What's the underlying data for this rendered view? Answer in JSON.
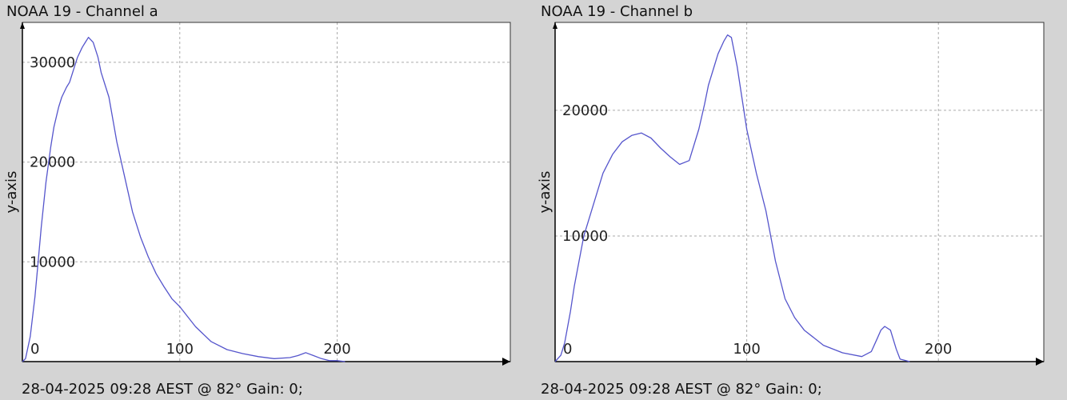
{
  "chart_data": [
    {
      "type": "line",
      "title": "NOAA 19 - Channel a",
      "ylabel": "y-axis",
      "footer": "28-04-2025 09:28 AEST @ 82° Gain: 0;",
      "xlim": [
        0,
        310
      ],
      "ylim": [
        0,
        34000
      ],
      "x_ticks": [
        0,
        100,
        200
      ],
      "y_ticks": [
        10000,
        20000,
        30000
      ],
      "grid": true,
      "series": [
        {
          "color": "#5555cc",
          "x": [
            0,
            2,
            5,
            8,
            10,
            12,
            15,
            18,
            20,
            23,
            25,
            28,
            30,
            33,
            35,
            38,
            40,
            42,
            45,
            48,
            50,
            55,
            60,
            65,
            70,
            75,
            80,
            85,
            90,
            95,
            100,
            110,
            120,
            130,
            140,
            150,
            160,
            170,
            175,
            180,
            185,
            190,
            195,
            200,
            205
          ],
          "y": [
            0,
            300,
            2500,
            6500,
            10000,
            13500,
            18000,
            21500,
            23500,
            25500,
            26500,
            27500,
            28000,
            29500,
            30500,
            31500,
            32000,
            32500,
            32000,
            30500,
            29000,
            26500,
            22000,
            18500,
            15000,
            12500,
            10500,
            8800,
            7500,
            6300,
            5500,
            3500,
            2000,
            1200,
            800,
            500,
            300,
            400,
            600,
            900,
            600,
            300,
            100,
            100,
            0
          ]
        }
      ]
    },
    {
      "type": "line",
      "title": "NOAA 19 - Channel b",
      "ylabel": "y-axis",
      "footer": "28-04-2025 09:28 AEST @ 82° Gain: 0;",
      "xlim": [
        0,
        255
      ],
      "ylim": [
        0,
        27000
      ],
      "x_ticks": [
        0,
        100,
        200
      ],
      "y_ticks": [
        10000,
        20000
      ],
      "grid": true,
      "series": [
        {
          "color": "#5555cc",
          "x": [
            0,
            3,
            5,
            8,
            10,
            15,
            18,
            20,
            25,
            30,
            35,
            40,
            45,
            50,
            55,
            60,
            65,
            70,
            75,
            78,
            80,
            83,
            85,
            88,
            90,
            92,
            95,
            100,
            105,
            110,
            115,
            120,
            125,
            130,
            140,
            150,
            160,
            165,
            168,
            170,
            172,
            175,
            178,
            180,
            185
          ],
          "y": [
            0,
            500,
            1500,
            4000,
            6000,
            10000,
            11500,
            12500,
            15000,
            16500,
            17500,
            18000,
            18200,
            17800,
            17000,
            16300,
            15700,
            16000,
            18500,
            20500,
            22000,
            23500,
            24500,
            25500,
            26000,
            25800,
            23500,
            18500,
            15000,
            12000,
            8000,
            5000,
            3500,
            2500,
            1300,
            700,
            400,
            800,
            1800,
            2500,
            2800,
            2500,
            1000,
            200,
            0
          ]
        }
      ]
    }
  ]
}
